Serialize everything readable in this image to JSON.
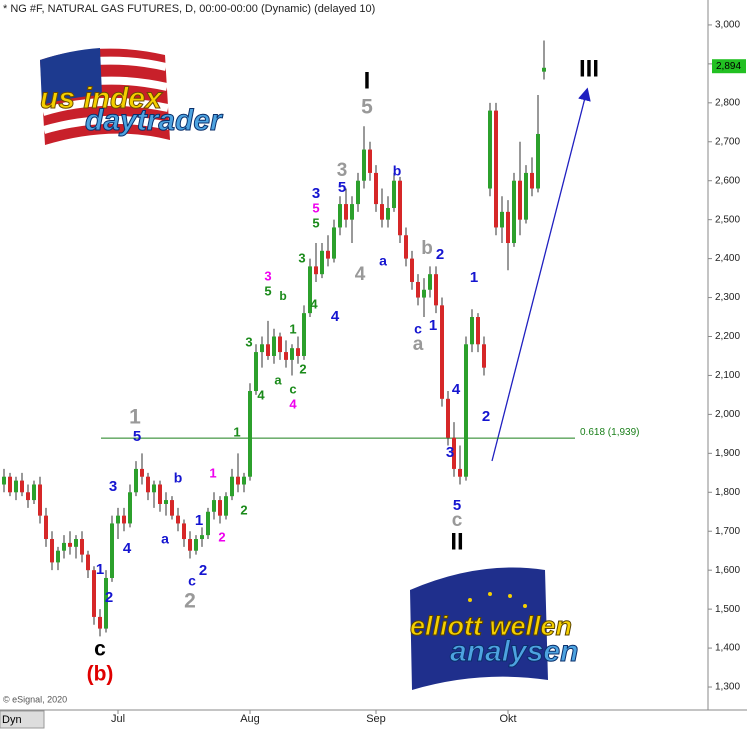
{
  "chart_data": {
    "type": "candlestick",
    "title": "* NG #F, NATURAL GAS FUTURES, D, 00:00-00:00 (Dynamic) (delayed 10)",
    "categories": [
      null,
      null,
      null,
      null,
      null,
      null,
      null,
      null,
      null,
      null,
      null,
      null,
      null,
      null,
      null,
      null,
      null,
      null,
      null,
      "Jul",
      null,
      null,
      null,
      null,
      null,
      null,
      null,
      null,
      null,
      null,
      null,
      null,
      null,
      null,
      null,
      null,
      null,
      null,
      null,
      null,
      null,
      "Aug",
      null,
      null,
      null,
      null,
      null,
      null,
      null,
      null,
      null,
      null,
      null,
      null,
      null,
      null,
      null,
      null,
      null,
      null,
      null,
      null,
      "Sep",
      null,
      null,
      null,
      null,
      null,
      null,
      null,
      null,
      null,
      null,
      null,
      null,
      null,
      null,
      null,
      null,
      null,
      null,
      null,
      null,
      null,
      "Okt",
      null,
      null,
      null,
      null,
      null,
      null
    ],
    "open": [
      1.82,
      1.84,
      1.8,
      1.83,
      1.8,
      1.78,
      1.82,
      1.74,
      1.68,
      1.62,
      1.65,
      1.67,
      1.66,
      1.68,
      1.64,
      1.6,
      1.48,
      1.45,
      1.58,
      1.72,
      1.74,
      1.72,
      1.8,
      1.86,
      1.84,
      1.8,
      1.82,
      1.77,
      1.78,
      1.74,
      1.72,
      1.68,
      1.65,
      1.68,
      1.69,
      1.75,
      1.78,
      1.74,
      1.79,
      1.84,
      1.82,
      1.84,
      2.06,
      2.16,
      2.18,
      2.15,
      2.2,
      2.16,
      2.14,
      2.17,
      2.15,
      2.26,
      2.38,
      2.36,
      2.42,
      2.4,
      2.48,
      2.54,
      2.5,
      2.54,
      2.6,
      2.68,
      2.62,
      2.54,
      2.5,
      2.53,
      2.6,
      2.46,
      2.4,
      2.34,
      2.3,
      2.32,
      2.36,
      2.28,
      2.04,
      1.94,
      1.86,
      1.84,
      2.18,
      2.25,
      2.18,
      2.58,
      2.78,
      2.48,
      2.52,
      2.44,
      2.6,
      2.5,
      2.62,
      2.58,
      2.88
    ],
    "high": [
      1.86,
      1.85,
      1.84,
      1.85,
      1.82,
      1.83,
      1.84,
      1.76,
      1.7,
      1.66,
      1.69,
      1.7,
      1.69,
      1.7,
      1.65,
      1.61,
      1.5,
      1.6,
      1.74,
      1.76,
      1.76,
      1.82,
      1.88,
      1.9,
      1.85,
      1.83,
      1.83,
      1.8,
      1.79,
      1.76,
      1.73,
      1.7,
      1.69,
      1.71,
      1.76,
      1.8,
      1.79,
      1.8,
      1.86,
      1.9,
      1.85,
      2.08,
      2.18,
      2.2,
      2.24,
      2.22,
      2.21,
      2.19,
      2.18,
      2.2,
      2.28,
      2.4,
      2.44,
      2.44,
      2.46,
      2.5,
      2.56,
      2.58,
      2.56,
      2.62,
      2.74,
      2.7,
      2.64,
      2.58,
      2.56,
      2.62,
      2.61,
      2.48,
      2.42,
      2.36,
      2.35,
      2.38,
      2.38,
      2.3,
      2.06,
      1.98,
      1.92,
      2.2,
      2.27,
      2.26,
      2.2,
      2.8,
      2.8,
      2.56,
      2.55,
      2.62,
      2.7,
      2.64,
      2.66,
      2.82,
      2.96
    ],
    "low": [
      1.8,
      1.79,
      1.78,
      1.79,
      1.76,
      1.77,
      1.72,
      1.66,
      1.6,
      1.6,
      1.63,
      1.64,
      1.63,
      1.62,
      1.58,
      1.46,
      1.43,
      1.44,
      1.57,
      1.68,
      1.7,
      1.71,
      1.79,
      1.82,
      1.78,
      1.76,
      1.75,
      1.74,
      1.73,
      1.7,
      1.66,
      1.63,
      1.64,
      1.66,
      1.68,
      1.73,
      1.72,
      1.73,
      1.78,
      1.8,
      1.8,
      1.83,
      2.05,
      2.12,
      2.14,
      2.13,
      2.14,
      2.12,
      2.1,
      2.13,
      2.14,
      2.25,
      2.34,
      2.35,
      2.38,
      2.39,
      2.46,
      2.48,
      2.44,
      2.52,
      2.58,
      2.6,
      2.52,
      2.48,
      2.48,
      2.52,
      2.44,
      2.38,
      2.32,
      2.28,
      2.25,
      2.3,
      2.26,
      2.02,
      1.92,
      1.84,
      1.82,
      1.83,
      2.16,
      2.16,
      2.1,
      2.56,
      2.46,
      2.44,
      2.37,
      2.43,
      2.46,
      2.49,
      2.56,
      2.57,
      2.86
    ],
    "close": [
      1.84,
      1.8,
      1.83,
      1.8,
      1.78,
      1.82,
      1.74,
      1.68,
      1.62,
      1.65,
      1.67,
      1.66,
      1.68,
      1.64,
      1.6,
      1.48,
      1.45,
      1.58,
      1.72,
      1.74,
      1.72,
      1.8,
      1.86,
      1.84,
      1.8,
      1.82,
      1.77,
      1.78,
      1.74,
      1.72,
      1.68,
      1.65,
      1.68,
      1.69,
      1.75,
      1.78,
      1.74,
      1.79,
      1.84,
      1.82,
      1.84,
      2.06,
      2.16,
      2.18,
      2.15,
      2.2,
      2.16,
      2.14,
      2.17,
      2.15,
      2.26,
      2.38,
      2.36,
      2.42,
      2.4,
      2.48,
      2.54,
      2.5,
      2.54,
      2.6,
      2.68,
      2.62,
      2.54,
      2.5,
      2.53,
      2.6,
      2.46,
      2.4,
      2.34,
      2.3,
      2.32,
      2.36,
      2.28,
      2.04,
      1.94,
      1.86,
      1.84,
      2.18,
      2.25,
      2.18,
      2.12,
      2.78,
      2.48,
      2.52,
      2.44,
      2.6,
      2.5,
      2.62,
      2.58,
      2.72,
      2.89
    ],
    "up_color": "#2ca02c",
    "down_color": "#d62728",
    "ylim": [
      1.241,
      3.064
    ],
    "yticks": [
      {
        "value": 3.0,
        "label": "3,000"
      },
      {
        "value": 2.9,
        "label": "2,900"
      },
      {
        "value": 2.8,
        "label": "2,800"
      },
      {
        "value": 2.7,
        "label": "2,700"
      },
      {
        "value": 2.6,
        "label": "2,600"
      },
      {
        "value": 2.5,
        "label": "2,500"
      },
      {
        "value": 2.4,
        "label": "2,400"
      },
      {
        "value": 2.3,
        "label": "2,300"
      },
      {
        "value": 2.2,
        "label": "2,200"
      },
      {
        "value": 2.1,
        "label": "2,100"
      },
      {
        "value": 2.0,
        "label": "2,000"
      },
      {
        "value": 1.9,
        "label": "1,900"
      },
      {
        "value": 1.8,
        "label": "1,800"
      },
      {
        "value": 1.7,
        "label": "1,700"
      },
      {
        "value": 1.6,
        "label": "1,600"
      },
      {
        "value": 1.5,
        "label": "1,500"
      },
      {
        "value": 1.4,
        "label": "1,400"
      },
      {
        "value": 1.3,
        "label": "1,300"
      }
    ],
    "last_price": {
      "value": 2.894,
      "label": "2,894"
    },
    "fib_level": {
      "value": 1.939,
      "label": "0.618 (1,939)",
      "color": "#1a7f1a"
    },
    "annotations": [
      {
        "text": "1",
        "color": "#1515d0"
      },
      {
        "text": "2",
        "color": "#1515d0"
      },
      {
        "text": "3",
        "color": "#1515d0"
      },
      {
        "text": "4",
        "color": "#1515d0"
      },
      {
        "text": "1",
        "color": "#999999"
      },
      {
        "text": "5",
        "color": "#1515d0"
      },
      {
        "text": "c",
        "color": "#000000"
      },
      {
        "text": "(b)",
        "color": "#e00000"
      },
      {
        "text": "b",
        "color": "#1515d0"
      },
      {
        "text": "a",
        "color": "#1515d0"
      },
      {
        "text": "1",
        "color": "#1515d0"
      },
      {
        "text": "c",
        "color": "#1515d0"
      },
      {
        "text": "2",
        "color": "#1515d0"
      },
      {
        "text": "2",
        "color": "#999999"
      },
      {
        "text": "1",
        "color": "#ee00ee"
      },
      {
        "text": "2",
        "color": "#ee00ee"
      },
      {
        "text": "1",
        "color": "#1a8a1a"
      },
      {
        "text": "2",
        "color": "#1a8a1a"
      },
      {
        "text": "3",
        "color": "#1a8a1a"
      },
      {
        "text": "4",
        "color": "#1a8a1a"
      },
      {
        "text": "a",
        "color": "#1a8a1a"
      },
      {
        "text": "c",
        "color": "#1a8a1a"
      },
      {
        "text": "4",
        "color": "#ee00ee"
      },
      {
        "text": "2",
        "color": "#1a8a1a"
      },
      {
        "text": "1",
        "color": "#1a8a1a"
      },
      {
        "text": "b",
        "color": "#1a8a1a"
      },
      {
        "text": "5",
        "color": "#1a8a1a"
      },
      {
        "text": "3",
        "color": "#ee00ee"
      },
      {
        "text": "3",
        "color": "#1a8a1a"
      },
      {
        "text": "4",
        "color": "#1a8a1a"
      },
      {
        "text": "4",
        "color": "#1515d0"
      },
      {
        "text": "5",
        "color": "#1a8a1a"
      },
      {
        "text": "5",
        "color": "#ee00ee"
      },
      {
        "text": "3",
        "color": "#1515d0"
      },
      {
        "text": "5",
        "color": "#1515d0"
      },
      {
        "text": "3",
        "color": "#999999"
      },
      {
        "text": "4",
        "color": "#999999"
      },
      {
        "text": "I",
        "color": "#000000"
      },
      {
        "text": "5",
        "color": "#999999"
      },
      {
        "text": "b",
        "color": "#1515d0"
      },
      {
        "text": "a",
        "color": "#1515d0"
      },
      {
        "text": "b",
        "color": "#999999"
      },
      {
        "text": "2",
        "color": "#1515d0"
      },
      {
        "text": "c",
        "color": "#1515d0"
      },
      {
        "text": "1",
        "color": "#1515d0"
      },
      {
        "text": "a",
        "color": "#999999"
      },
      {
        "text": "4",
        "color": "#1515d0"
      },
      {
        "text": "3",
        "color": "#1515d0"
      },
      {
        "text": "5",
        "color": "#1515d0"
      },
      {
        "text": "c",
        "color": "#999999"
      },
      {
        "text": "II",
        "color": "#000000"
      },
      {
        "text": "1",
        "color": "#1515d0"
      },
      {
        "text": "2",
        "color": "#1515d0"
      },
      {
        "text": "III",
        "color": "#000000"
      }
    ],
    "logo_top": [
      "us index",
      "daytrader"
    ],
    "logo_bottom": [
      "elliott wellen",
      "analysen"
    ],
    "copyright": "© eSignal, 2020",
    "mode": "Dyn"
  }
}
